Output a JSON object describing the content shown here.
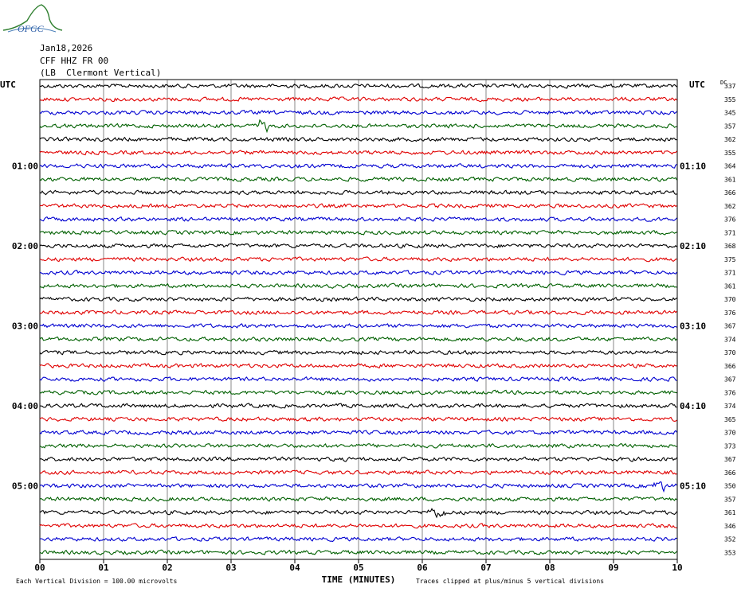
{
  "logo_text": "OFGC",
  "header": {
    "date": "Jan18,2026",
    "station": "CFF HHZ FR 00",
    "site": "(LB  Clermont Vertical)"
  },
  "labels": {
    "utc_left": "UTC",
    "utc_right": "UTC",
    "dc": "DC"
  },
  "chart_data": {
    "type": "line",
    "title": "",
    "xlabel": "TIME (MINUTES)",
    "x_ticks": [
      "00",
      "01",
      "02",
      "03",
      "04",
      "05",
      "06",
      "07",
      "08",
      "09",
      "10"
    ],
    "xlim": [
      0,
      10
    ],
    "trace_colors": [
      "#000000",
      "#e00000",
      "#0000d0",
      "#006000"
    ],
    "left_hour_labels": [
      {
        "row": 6,
        "text": "01:00"
      },
      {
        "row": 12,
        "text": "02:00"
      },
      {
        "row": 18,
        "text": "03:00"
      },
      {
        "row": 24,
        "text": "04:00"
      },
      {
        "row": 30,
        "text": "05:00"
      }
    ],
    "right_hour_labels": [
      {
        "row": 6,
        "text": "01:10"
      },
      {
        "row": 12,
        "text": "02:10"
      },
      {
        "row": 18,
        "text": "03:10"
      },
      {
        "row": 24,
        "text": "04:10"
      },
      {
        "row": 30,
        "text": "05:10"
      }
    ],
    "dc_offsets": [
      337,
      355,
      345,
      357,
      362,
      355,
      364,
      361,
      366,
      362,
      376,
      371,
      368,
      375,
      371,
      361,
      370,
      376,
      367,
      374,
      370,
      366,
      367,
      376,
      374,
      365,
      370,
      373,
      367,
      366,
      350,
      357,
      361,
      346,
      352,
      353
    ],
    "footer_left": "Each Vertical Division =  100.00 microvolts",
    "footer_right": "Traces clipped at plus/minus 5 vertical divisions",
    "grid": true
  }
}
